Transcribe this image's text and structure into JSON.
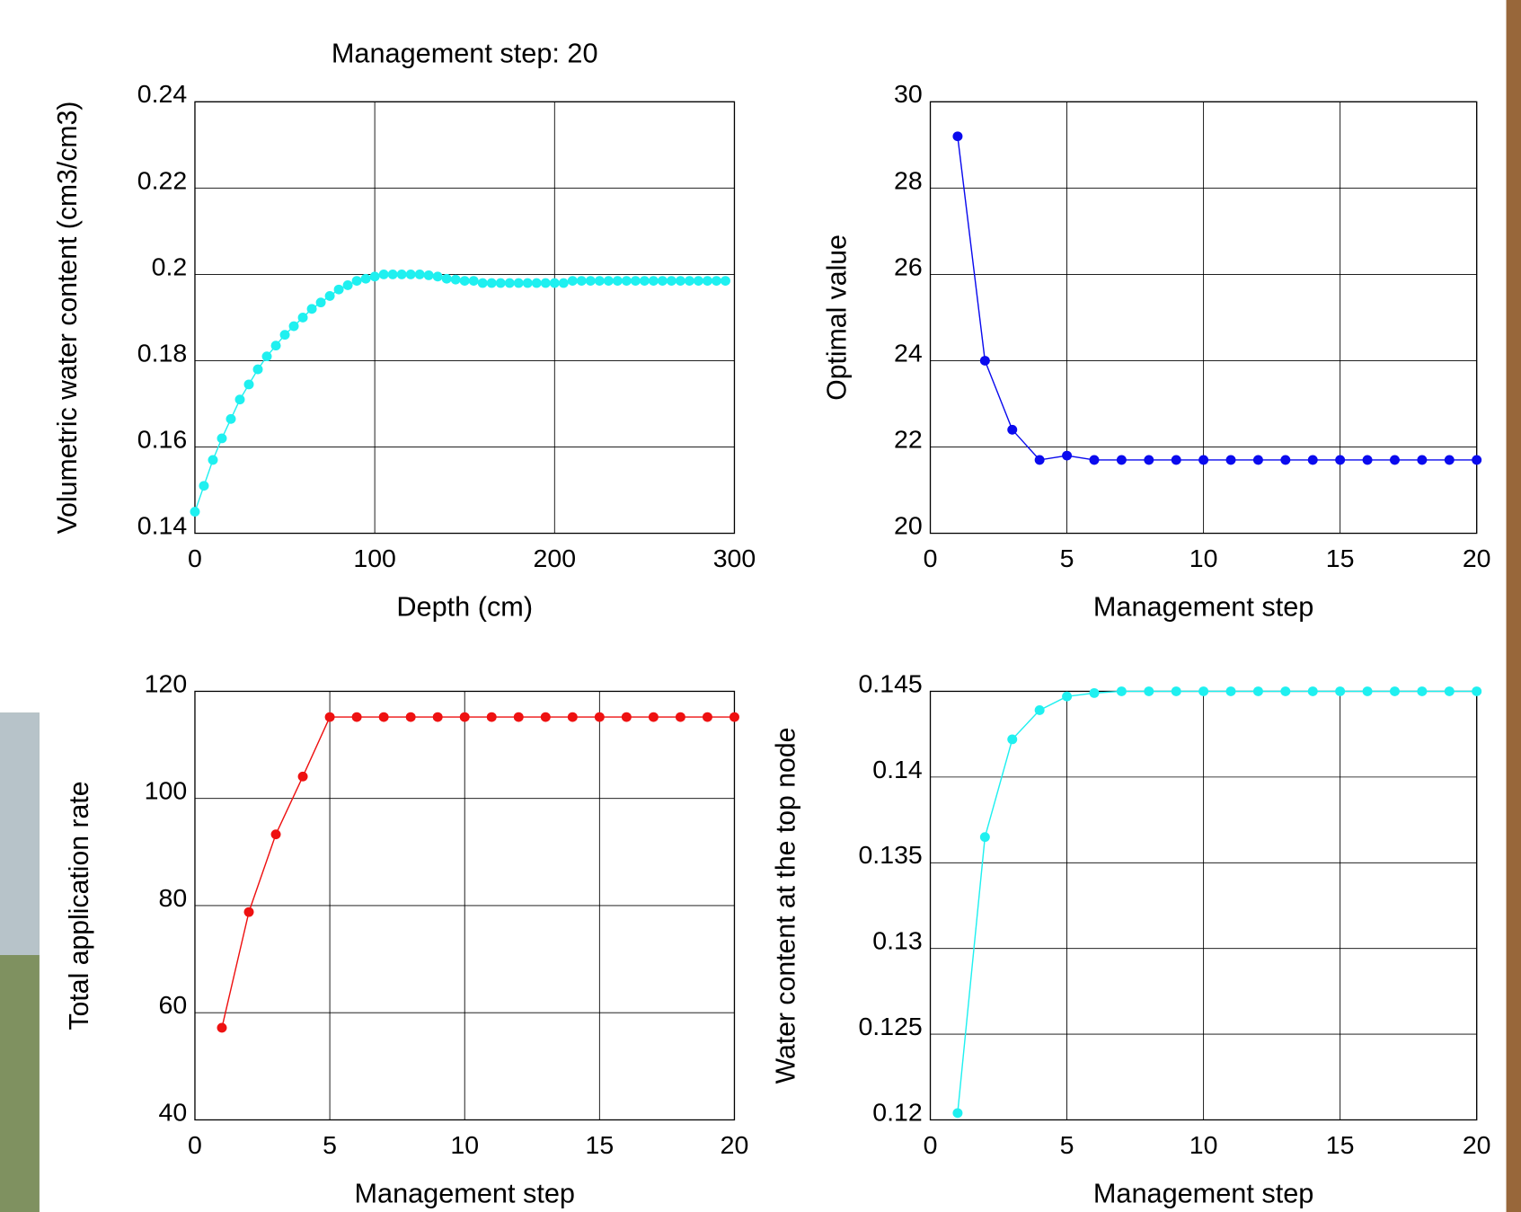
{
  "chart_data": [
    {
      "type": "line",
      "title": "Management step: 20",
      "x_label": "Depth (cm)",
      "y_label": "Volumetric water content (cm3/cm3)",
      "x": [
        0,
        5,
        10,
        15,
        20,
        25,
        30,
        35,
        40,
        45,
        50,
        55,
        60,
        65,
        70,
        75,
        80,
        85,
        90,
        95,
        100,
        105,
        110,
        115,
        120,
        125,
        130,
        135,
        140,
        145,
        150,
        155,
        160,
        165,
        170,
        175,
        180,
        185,
        190,
        195,
        200,
        205,
        210,
        215,
        220,
        225,
        230,
        235,
        240,
        245,
        250,
        255,
        260,
        265,
        270,
        275,
        280,
        285,
        290,
        295
      ],
      "values": [
        0.145,
        0.151,
        0.157,
        0.162,
        0.1665,
        0.171,
        0.1745,
        0.178,
        0.181,
        0.1835,
        0.186,
        0.188,
        0.19,
        0.192,
        0.1935,
        0.195,
        0.1965,
        0.1975,
        0.1985,
        0.199,
        0.1995,
        0.2,
        0.2,
        0.2,
        0.2,
        0.2,
        0.1998,
        0.1995,
        0.199,
        0.1988,
        0.1985,
        0.1985,
        0.198,
        0.198,
        0.198,
        0.198,
        0.198,
        0.198,
        0.198,
        0.198,
        0.198,
        0.198,
        0.1985,
        0.1985,
        0.1985,
        0.1985,
        0.1985,
        0.1985,
        0.1985,
        0.1985,
        0.1985,
        0.1985,
        0.1985,
        0.1985,
        0.1985,
        0.1985,
        0.1985,
        0.1985,
        0.1985,
        0.1985
      ],
      "color": "#1ff0f0",
      "xlim": [
        0,
        300
      ],
      "ylim": [
        0.14,
        0.24
      ],
      "xticks": [
        0,
        100,
        200,
        300
      ],
      "yticks": [
        0.14,
        0.16,
        0.18,
        0.2,
        0.22,
        0.24
      ],
      "grid": true
    },
    {
      "type": "line",
      "x_label": "Management step",
      "y_label": "Optimal value",
      "x": [
        1,
        2,
        3,
        4,
        5,
        6,
        7,
        8,
        9,
        10,
        11,
        12,
        13,
        14,
        15,
        16,
        17,
        18,
        19,
        20
      ],
      "values": [
        29.2,
        24.0,
        22.4,
        21.7,
        21.8,
        21.7,
        21.7,
        21.7,
        21.7,
        21.7,
        21.7,
        21.7,
        21.7,
        21.7,
        21.7,
        21.7,
        21.7,
        21.7,
        21.7,
        21.7
      ],
      "color": "#0a0aee",
      "xlim": [
        0,
        20
      ],
      "ylim": [
        20,
        30
      ],
      "xticks": [
        0,
        5,
        10,
        15,
        20
      ],
      "yticks": [
        20,
        22,
        24,
        26,
        28,
        30
      ],
      "grid": true
    },
    {
      "type": "line",
      "x_label": "Management step",
      "y_label": "Total application rate",
      "x": [
        1,
        2,
        3,
        4,
        5,
        6,
        7,
        8,
        9,
        10,
        11,
        12,
        13,
        14,
        15,
        16,
        17,
        18,
        19,
        20
      ],
      "values": [
        57.2,
        78.8,
        93.3,
        104.1,
        115.2,
        115.2,
        115.2,
        115.2,
        115.2,
        115.2,
        115.2,
        115.2,
        115.2,
        115.2,
        115.2,
        115.2,
        115.2,
        115.2,
        115.2,
        115.2
      ],
      "color": "#ee1111",
      "xlim": [
        0,
        20
      ],
      "ylim": [
        40,
        120
      ],
      "xticks": [
        0,
        5,
        10,
        15,
        20
      ],
      "yticks": [
        40,
        60,
        80,
        100,
        120
      ],
      "grid": true
    },
    {
      "type": "line",
      "x_label": "Management step",
      "y_label": "Water content at the top node",
      "x": [
        1,
        2,
        3,
        4,
        5,
        6,
        7,
        8,
        9,
        10,
        11,
        12,
        13,
        14,
        15,
        16,
        17,
        18,
        19,
        20
      ],
      "values": [
        0.1204,
        0.1365,
        0.1422,
        0.1439,
        0.1447,
        0.1449,
        0.145,
        0.145,
        0.145,
        0.145,
        0.145,
        0.145,
        0.145,
        0.145,
        0.145,
        0.145,
        0.145,
        0.145,
        0.145,
        0.145
      ],
      "color": "#1ff0f0",
      "xlim": [
        0,
        20
      ],
      "ylim": [
        0.12,
        0.145
      ],
      "xticks": [
        0,
        5,
        10,
        15,
        20
      ],
      "yticks": [
        0.12,
        0.125,
        0.13,
        0.135,
        0.14,
        0.145
      ],
      "grid": true
    }
  ]
}
